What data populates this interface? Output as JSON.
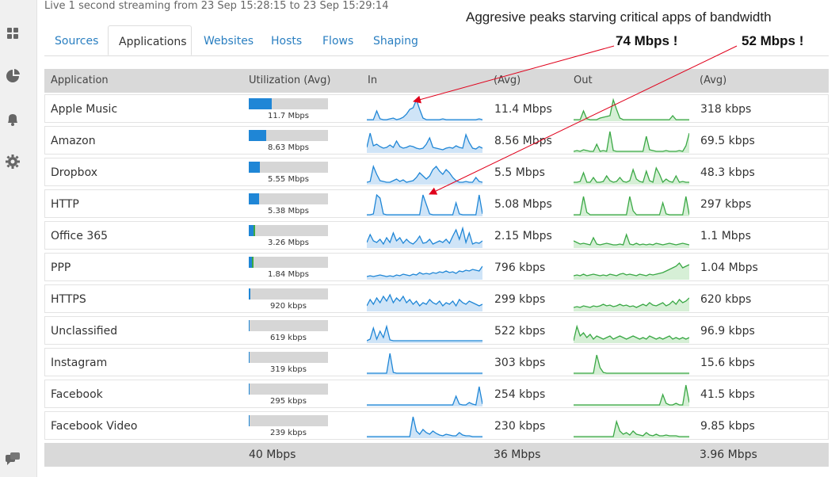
{
  "status": "Live 1 second streaming from 23 Sep 15:28:15 to 23 Sep 15:29:14",
  "sidebar": {
    "icons": [
      "dashboard-icon",
      "pie-chart-icon",
      "bell-icon",
      "gear-icon"
    ],
    "bottom_icon": "chat-icon"
  },
  "tabs": [
    {
      "label": "Sources",
      "active": false
    },
    {
      "label": "Applications",
      "active": true
    },
    {
      "label": "Websites",
      "active": false
    },
    {
      "label": "Hosts",
      "active": false
    },
    {
      "label": "Flows",
      "active": false
    },
    {
      "label": "Shaping",
      "active": false
    }
  ],
  "annotation": {
    "title": "Aggresive peaks starving critical apps of bandwidth",
    "peak1": "74 Mbps !",
    "peak2": "52 Mbps !",
    "arrow_color": "#e0001b"
  },
  "table": {
    "headers": {
      "application": "Application",
      "utilization": "Utilization (Avg)",
      "in": "In",
      "in_avg": "(Avg)",
      "out": "Out",
      "out_avg": "(Avg)"
    },
    "rows": [
      {
        "name": "Apple Music",
        "util_label": "11.7 Mbps",
        "util_pct": 29,
        "util_green_pct": 0,
        "in_avg": "11.4 Mbps",
        "out_avg": "318 kbps",
        "in_series": [
          1,
          1,
          1,
          12,
          2,
          1,
          1,
          2,
          3,
          1,
          2,
          4,
          8,
          14,
          16,
          26,
          14,
          3,
          1,
          1,
          1,
          1,
          1,
          2,
          1,
          1,
          1,
          1,
          1,
          1,
          1,
          1,
          1,
          1,
          2,
          1
        ],
        "out_series": [
          1,
          1,
          1,
          12,
          2,
          1,
          1,
          1,
          3,
          4,
          5,
          6,
          26,
          14,
          3,
          1,
          1,
          1,
          1,
          1,
          1,
          1,
          1,
          1,
          1,
          1,
          1,
          1,
          1,
          1,
          6,
          1,
          1,
          1,
          1,
          1
        ]
      },
      {
        "name": "Amazon",
        "util_label": "8.63 Mbps",
        "util_pct": 22,
        "util_green_pct": 0,
        "in_avg": "8.56 Mbps",
        "out_avg": "69.5 kbps",
        "in_series": [
          6,
          24,
          8,
          10,
          7,
          5,
          6,
          9,
          6,
          14,
          7,
          5,
          6,
          8,
          7,
          5,
          4,
          5,
          10,
          18,
          6,
          5,
          4,
          3,
          5,
          6,
          5,
          8,
          6,
          5,
          22,
          12,
          5,
          4,
          7,
          5
        ],
        "out_series": [
          1,
          2,
          1,
          3,
          2,
          1,
          1,
          10,
          1,
          2,
          1,
          26,
          2,
          1,
          1,
          1,
          1,
          1,
          1,
          1,
          1,
          1,
          20,
          3,
          2,
          1,
          1,
          1,
          2,
          1,
          1,
          1,
          2,
          1,
          8,
          24
        ]
      },
      {
        "name": "Dropbox",
        "util_label": "5.55 Mbps",
        "util_pct": 14,
        "util_green_pct": 0,
        "in_avg": "5.5 Mbps",
        "out_avg": "48.3 kbps",
        "in_series": [
          2,
          3,
          22,
          12,
          4,
          3,
          2,
          2,
          4,
          6,
          3,
          5,
          2,
          3,
          4,
          8,
          14,
          10,
          6,
          10,
          18,
          22,
          16,
          12,
          18,
          14,
          8,
          4,
          2,
          2,
          3,
          2,
          2,
          8,
          3,
          2
        ],
        "out_series": [
          2,
          2,
          3,
          14,
          2,
          2,
          8,
          2,
          2,
          3,
          10,
          4,
          2,
          3,
          8,
          3,
          2,
          4,
          18,
          6,
          3,
          2,
          16,
          4,
          2,
          20,
          12,
          2,
          6,
          3,
          2,
          10,
          2,
          3,
          2,
          2
        ]
      },
      {
        "name": "HTTP",
        "util_label": "5.38 Mbps",
        "util_pct": 13,
        "util_green_pct": 0,
        "in_avg": "5.08 Mbps",
        "out_avg": "297 kbps",
        "in_series": [
          1,
          1,
          2,
          26,
          22,
          2,
          1,
          1,
          1,
          1,
          1,
          1,
          1,
          1,
          1,
          1,
          1,
          26,
          14,
          2,
          1,
          1,
          1,
          1,
          1,
          1,
          1,
          16,
          2,
          1,
          1,
          1,
          1,
          1,
          26,
          2
        ],
        "out_series": [
          1,
          1,
          1,
          24,
          4,
          1,
          1,
          1,
          1,
          1,
          1,
          1,
          1,
          1,
          1,
          1,
          1,
          24,
          6,
          1,
          1,
          1,
          1,
          1,
          1,
          1,
          1,
          16,
          2,
          1,
          1,
          1,
          1,
          1,
          24,
          1
        ]
      },
      {
        "name": "Office 365",
        "util_label": "3.26 Mbps",
        "util_pct": 6,
        "util_green_pct": 2,
        "in_avg": "2.15 Mbps",
        "out_avg": "1.1 Mbps",
        "in_series": [
          6,
          16,
          8,
          6,
          10,
          4,
          12,
          6,
          18,
          8,
          12,
          5,
          10,
          6,
          4,
          8,
          14,
          5,
          6,
          10,
          4,
          6,
          8,
          6,
          10,
          5,
          14,
          22,
          10,
          24,
          6,
          18,
          4,
          6,
          5,
          8
        ],
        "out_series": [
          8,
          6,
          4,
          5,
          4,
          3,
          12,
          4,
          3,
          4,
          5,
          4,
          3,
          3,
          4,
          3,
          16,
          4,
          3,
          5,
          3,
          4,
          3,
          4,
          3,
          5,
          4,
          3,
          4,
          5,
          4,
          3,
          4,
          5,
          4,
          3
        ]
      },
      {
        "name": "PPP",
        "util_label": "1.84 Mbps",
        "util_pct": 4,
        "util_green_pct": 2,
        "in_avg": "796 kbps",
        "out_avg": "1.04 Mbps",
        "in_series": [
          3,
          4,
          3,
          4,
          5,
          4,
          3,
          4,
          3,
          5,
          4,
          6,
          5,
          4,
          6,
          5,
          8,
          6,
          7,
          6,
          8,
          7,
          9,
          8,
          10,
          8,
          9,
          7,
          10,
          9,
          11,
          10,
          12,
          11,
          10,
          16
        ],
        "out_series": [
          4,
          5,
          4,
          6,
          4,
          5,
          6,
          5,
          4,
          5,
          4,
          6,
          5,
          4,
          6,
          7,
          5,
          6,
          5,
          4,
          6,
          5,
          4,
          6,
          5,
          6,
          7,
          8,
          10,
          12,
          14,
          16,
          20,
          14,
          16,
          18
        ]
      },
      {
        "name": "HTTPS",
        "util_label": "920 kbps",
        "util_pct": 2,
        "util_green_pct": 0,
        "in_avg": "299 kbps",
        "out_avg": "620 kbps",
        "in_series": [
          6,
          14,
          8,
          16,
          10,
          18,
          12,
          20,
          10,
          16,
          12,
          18,
          10,
          14,
          8,
          12,
          6,
          10,
          8,
          14,
          10,
          8,
          12,
          6,
          10,
          8,
          12,
          6,
          14,
          10,
          8,
          12,
          10,
          8,
          6,
          8
        ],
        "out_series": [
          4,
          5,
          4,
          6,
          5,
          4,
          6,
          5,
          6,
          8,
          6,
          7,
          5,
          6,
          8,
          6,
          7,
          5,
          6,
          4,
          6,
          8,
          6,
          10,
          7,
          6,
          8,
          10,
          6,
          8,
          12,
          8,
          14,
          10,
          12,
          16
        ]
      },
      {
        "name": "Unclassified",
        "util_label": "619 kbps",
        "util_pct": 1,
        "util_green_pct": 0,
        "in_avg": "522 kbps",
        "out_avg": "96.9 kbps",
        "in_series": [
          2,
          4,
          18,
          4,
          14,
          6,
          20,
          3,
          2,
          2,
          2,
          2,
          2,
          2,
          2,
          2,
          2,
          2,
          2,
          2,
          2,
          2,
          2,
          2,
          2,
          2,
          2,
          2,
          2,
          2,
          2,
          2,
          2,
          2,
          2,
          2
        ],
        "out_series": [
          2,
          20,
          8,
          12,
          6,
          10,
          4,
          8,
          6,
          4,
          6,
          8,
          4,
          6,
          8,
          6,
          4,
          6,
          8,
          6,
          4,
          6,
          4,
          8,
          6,
          4,
          6,
          4,
          6,
          8,
          4,
          6,
          4,
          6,
          4,
          6
        ]
      },
      {
        "name": "Instagram",
        "util_label": "319 kbps",
        "util_pct": 1,
        "util_green_pct": 0,
        "in_avg": "303 kbps",
        "out_avg": "15.6 kbps",
        "in_series": [
          1,
          1,
          1,
          1,
          1,
          1,
          1,
          26,
          2,
          1,
          1,
          1,
          1,
          1,
          1,
          1,
          1,
          1,
          1,
          1,
          1,
          1,
          1,
          1,
          1,
          1,
          1,
          1,
          1,
          1,
          1,
          1,
          1,
          1,
          1,
          1
        ],
        "out_series": [
          1,
          1,
          1,
          1,
          1,
          1,
          1,
          24,
          8,
          2,
          1,
          1,
          1,
          1,
          1,
          1,
          1,
          1,
          1,
          1,
          1,
          1,
          1,
          1,
          1,
          1,
          1,
          1,
          1,
          1,
          1,
          1,
          1,
          1,
          1,
          1
        ]
      },
      {
        "name": "Facebook",
        "util_label": "295 kbps",
        "util_pct": 1,
        "util_green_pct": 0,
        "in_avg": "254 kbps",
        "out_avg": "41.5 kbps",
        "in_series": [
          1,
          1,
          1,
          1,
          1,
          1,
          1,
          1,
          1,
          1,
          1,
          1,
          1,
          1,
          1,
          1,
          1,
          1,
          1,
          1,
          1,
          1,
          1,
          1,
          1,
          1,
          1,
          12,
          2,
          1,
          1,
          4,
          2,
          1,
          24,
          2
        ],
        "out_series": [
          1,
          1,
          1,
          1,
          1,
          1,
          1,
          1,
          1,
          1,
          1,
          1,
          1,
          1,
          1,
          1,
          1,
          1,
          1,
          1,
          1,
          1,
          1,
          1,
          1,
          1,
          1,
          14,
          3,
          1,
          1,
          3,
          1,
          1,
          26,
          4
        ]
      },
      {
        "name": "Facebook Video",
        "util_label": "239 kbps",
        "util_pct": 1,
        "util_green_pct": 0,
        "in_avg": "230 kbps",
        "out_avg": "9.85 kbps",
        "in_series": [
          1,
          1,
          1,
          1,
          1,
          1,
          1,
          1,
          1,
          1,
          1,
          1,
          1,
          1,
          26,
          8,
          4,
          10,
          6,
          4,
          8,
          5,
          3,
          2,
          4,
          3,
          2,
          2,
          6,
          3,
          2,
          2,
          1,
          1,
          1,
          1
        ],
        "out_series": [
          1,
          1,
          1,
          1,
          1,
          1,
          1,
          1,
          1,
          1,
          1,
          1,
          1,
          20,
          8,
          4,
          6,
          3,
          8,
          4,
          3,
          2,
          6,
          3,
          2,
          4,
          2,
          2,
          3,
          2,
          2,
          2,
          1,
          1,
          1,
          1
        ]
      }
    ],
    "footer": {
      "utilization": "40 Mbps",
      "in_avg": "36 Mbps",
      "out_avg": "3.96 Mbps"
    }
  },
  "colors": {
    "in_line": "#1f86d6",
    "in_fill": "#cfe4f7",
    "out_line": "#3aa845",
    "out_fill": "#d6efd6",
    "tab_link": "#2a7fc1"
  }
}
